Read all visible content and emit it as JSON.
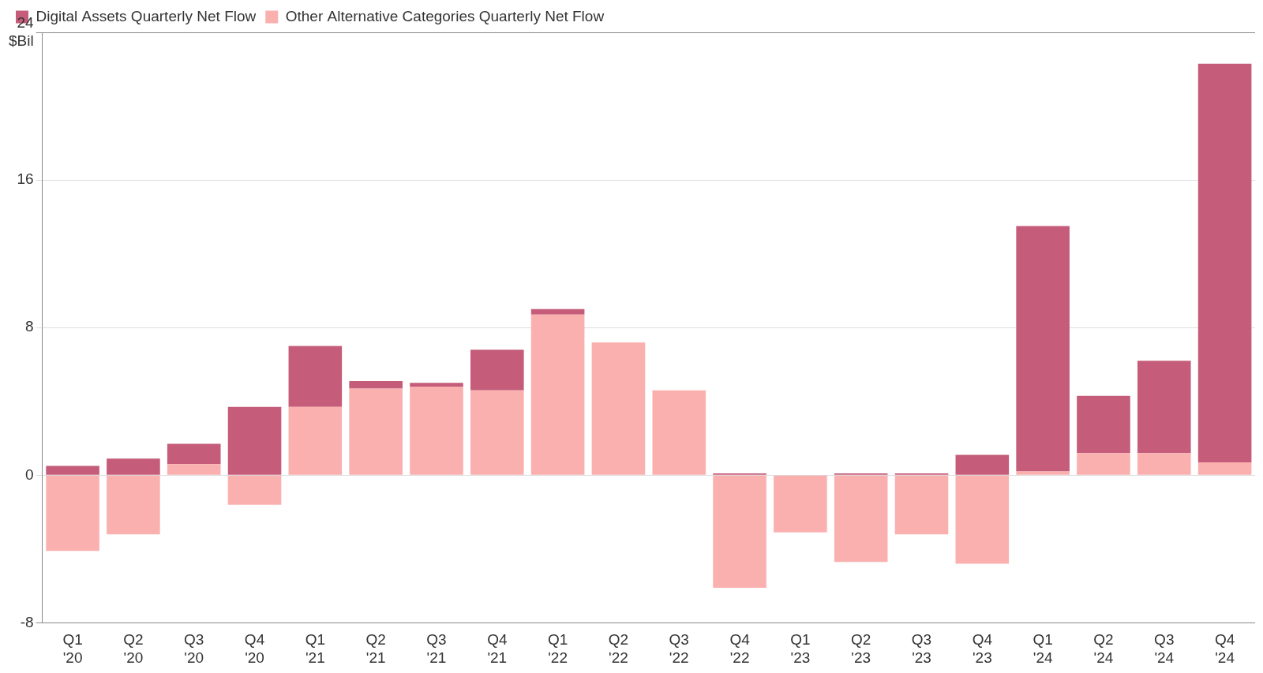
{
  "chart_data": {
    "type": "bar",
    "stacked": true,
    "legend": "top-left",
    "grid": true,
    "ylabel": "$Bil",
    "categories": [
      [
        "Q1",
        "'20"
      ],
      [
        "Q2",
        "'20"
      ],
      [
        "Q3",
        "'20"
      ],
      [
        "Q4",
        "'20"
      ],
      [
        "Q1",
        "'21"
      ],
      [
        "Q2",
        "'21"
      ],
      [
        "Q3",
        "'21"
      ],
      [
        "Q4",
        "'21"
      ],
      [
        "Q1",
        "'22"
      ],
      [
        "Q2",
        "'22"
      ],
      [
        "Q3",
        "'22"
      ],
      [
        "Q4",
        "'22"
      ],
      [
        "Q1",
        "'23"
      ],
      [
        "Q2",
        "'23"
      ],
      [
        "Q3",
        "'23"
      ],
      [
        "Q4",
        "'23"
      ],
      [
        "Q1",
        "'24"
      ],
      [
        "Q2",
        "'24"
      ],
      [
        "Q3",
        "'24"
      ],
      [
        "Q4",
        "'24"
      ]
    ],
    "series": [
      {
        "name": "Digital Assets Quarterly Net Flow",
        "color": "#c45c7a",
        "values": [
          0.5,
          0.9,
          1.1,
          3.7,
          3.3,
          0.4,
          0.2,
          2.2,
          0.3,
          0,
          0,
          0.1,
          0,
          0.1,
          0.1,
          1.1,
          13.3,
          3.1,
          5.0,
          21.6
        ]
      },
      {
        "name": "Other Alternative Categories Quarterly Net Flow",
        "color": "#fbb0b0",
        "values": [
          -4.1,
          -3.2,
          0.6,
          -1.6,
          3.7,
          4.7,
          4.8,
          4.6,
          8.7,
          7.2,
          4.6,
          -6.1,
          -3.1,
          -4.7,
          -3.2,
          -4.8,
          0.2,
          1.2,
          1.2,
          0.7
        ]
      }
    ],
    "ylim": [
      -8,
      24
    ],
    "yticks": [
      -8,
      0,
      8,
      16,
      24
    ]
  }
}
